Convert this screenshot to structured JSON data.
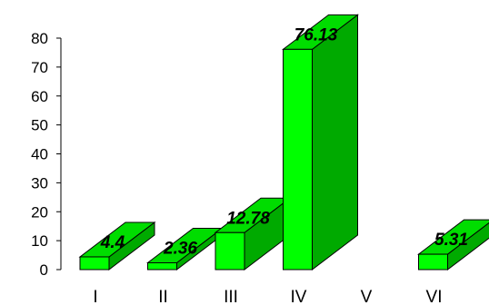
{
  "chart_data": {
    "type": "bar",
    "title": "",
    "xlabel": "",
    "ylabel": "",
    "categories": [
      "I",
      "II",
      "III",
      "IV",
      "V",
      "VI"
    ],
    "values": [
      4.4,
      2.36,
      12.78,
      76.13,
      null,
      5.31
    ],
    "data_labels": [
      "4.4",
      "2.36",
      "12.78",
      "76.13",
      "",
      "5.31"
    ],
    "ylim": [
      0,
      80
    ],
    "yticks": [
      "0",
      "10",
      "20",
      "30",
      "40",
      "50",
      "60",
      "70",
      "80"
    ],
    "grid": false,
    "style": "3d",
    "colors": {
      "front": "#00ff00",
      "top": "#00dd00",
      "side": "#00aa00",
      "outline": "#000000"
    }
  }
}
